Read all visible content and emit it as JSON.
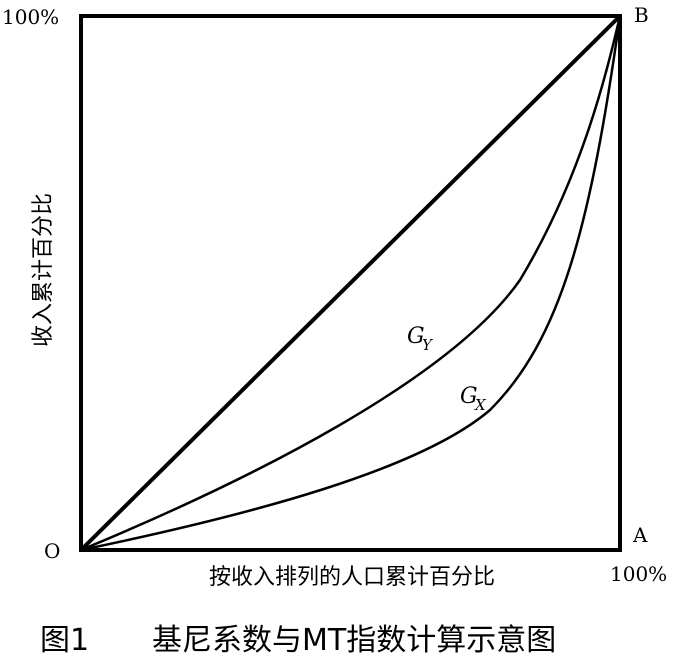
{
  "diagram": {
    "corner_labels": {
      "origin": "O",
      "bottom_right": "A",
      "top_right": "B"
    },
    "y_top_label": "100%",
    "x_right_label": "100%",
    "y_axis_title": "收入累计百分比",
    "x_axis_title": "按收入排列的人口累计百分比",
    "curves": [
      {
        "name_main": "G",
        "name_sub": "Y"
      },
      {
        "name_main": "G",
        "name_sub": "X"
      }
    ]
  },
  "caption": {
    "number": "图1",
    "text": "基尼系数与MT指数计算示意图"
  }
}
